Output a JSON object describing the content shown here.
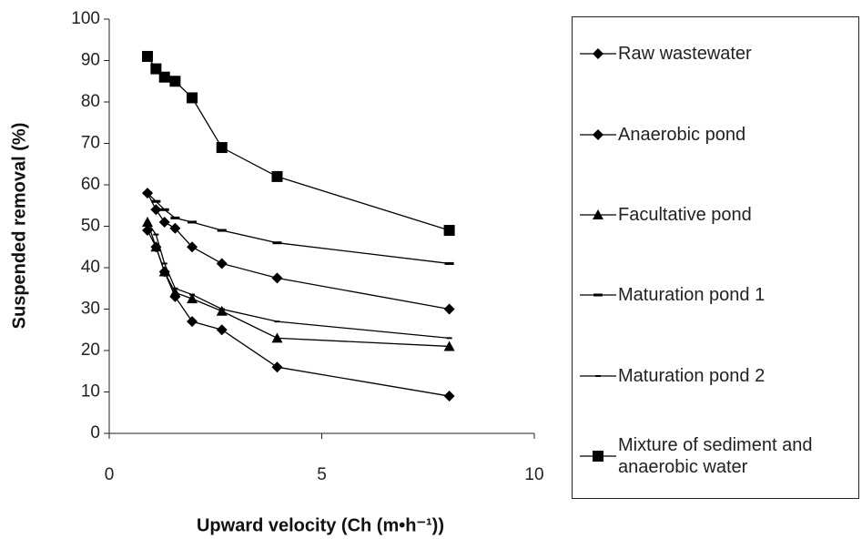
{
  "chart_data": {
    "type": "line",
    "x_label": "Upward velocity (Ch (m•h⁻¹))",
    "y_label": "Suspended removal (%)",
    "x": [
      0.9,
      1.1,
      1.3,
      1.55,
      1.95,
      2.65,
      3.95,
      8
    ],
    "xlim": [
      0,
      10
    ],
    "xticks": [
      0,
      5,
      10
    ],
    "ylim": [
      0,
      100
    ],
    "yticks": [
      0,
      10,
      20,
      30,
      40,
      50,
      60,
      70,
      80,
      90,
      100
    ],
    "grid": false,
    "legend": "right",
    "series": [
      {
        "name": "Raw wastewater",
        "color": "#000000",
        "marker": "diamond",
        "values": [
          49,
          45,
          39,
          33,
          27,
          25,
          16,
          9
        ]
      },
      {
        "name": "Anaerobic pond",
        "color": "#000000",
        "marker": "diamond",
        "values": [
          58,
          54,
          51,
          49.5,
          45,
          41,
          37.5,
          30
        ]
      },
      {
        "name": "Facultative pond",
        "color": "#000000",
        "marker": "triangle",
        "values": [
          51,
          45,
          39,
          34,
          32.5,
          29.5,
          23,
          21
        ]
      },
      {
        "name": "Maturation pond 1",
        "color": "#000000",
        "marker": "dash",
        "values": [
          58,
          56,
          54,
          52,
          51,
          49,
          46,
          41
        ]
      },
      {
        "name": "Maturation pond 2",
        "color": "#000000",
        "marker": "small-dash",
        "values": [
          51,
          48,
          41,
          35,
          33.5,
          30,
          27,
          23
        ]
      },
      {
        "name": "Mixture of sediment and anaerobic water",
        "color": "#000000",
        "marker": "square",
        "values": [
          91,
          88,
          86,
          85,
          81,
          69,
          62,
          49
        ]
      }
    ]
  }
}
